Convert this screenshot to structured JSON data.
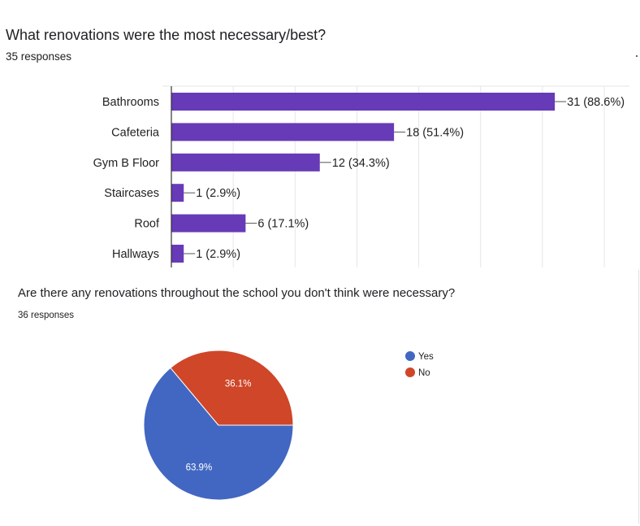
{
  "questions": [
    {
      "title": "What renovations were the most necessary/best?",
      "responses": "35 responses"
    },
    {
      "title": "Are there any renovations throughout the school you don't think were necessary?",
      "responses": "36 responses"
    }
  ],
  "colors": {
    "bar": "#673ab7",
    "yes": "#4267c2",
    "no": "#cf4628",
    "grid": "#e6e6e6",
    "axis": "#333333"
  },
  "chart_data": [
    {
      "type": "bar",
      "orientation": "horizontal",
      "title": "What renovations were the most necessary/best?",
      "categories": [
        "Bathrooms",
        "Cafeteria",
        "Gym B Floor",
        "Staircases",
        "Roof",
        "Hallways"
      ],
      "values": [
        31,
        18,
        12,
        1,
        6,
        1
      ],
      "data_labels": [
        "31 (88.6%)",
        "18 (51.4%)",
        "12 (34.3%)",
        "1 (2.9%)",
        "6 (17.1%)",
        "1 (2.9%)"
      ],
      "xlim": [
        0,
        36
      ],
      "grid": true
    },
    {
      "type": "pie",
      "title": "Are there any renovations throughout the school you don't think were necessary?",
      "labels": [
        "Yes",
        "No"
      ],
      "values": [
        63.9,
        36.1
      ],
      "data_labels": [
        "63.9%",
        "36.1%"
      ],
      "colors": [
        "#4267c2",
        "#cf4628"
      ],
      "legend_position": "right"
    }
  ]
}
